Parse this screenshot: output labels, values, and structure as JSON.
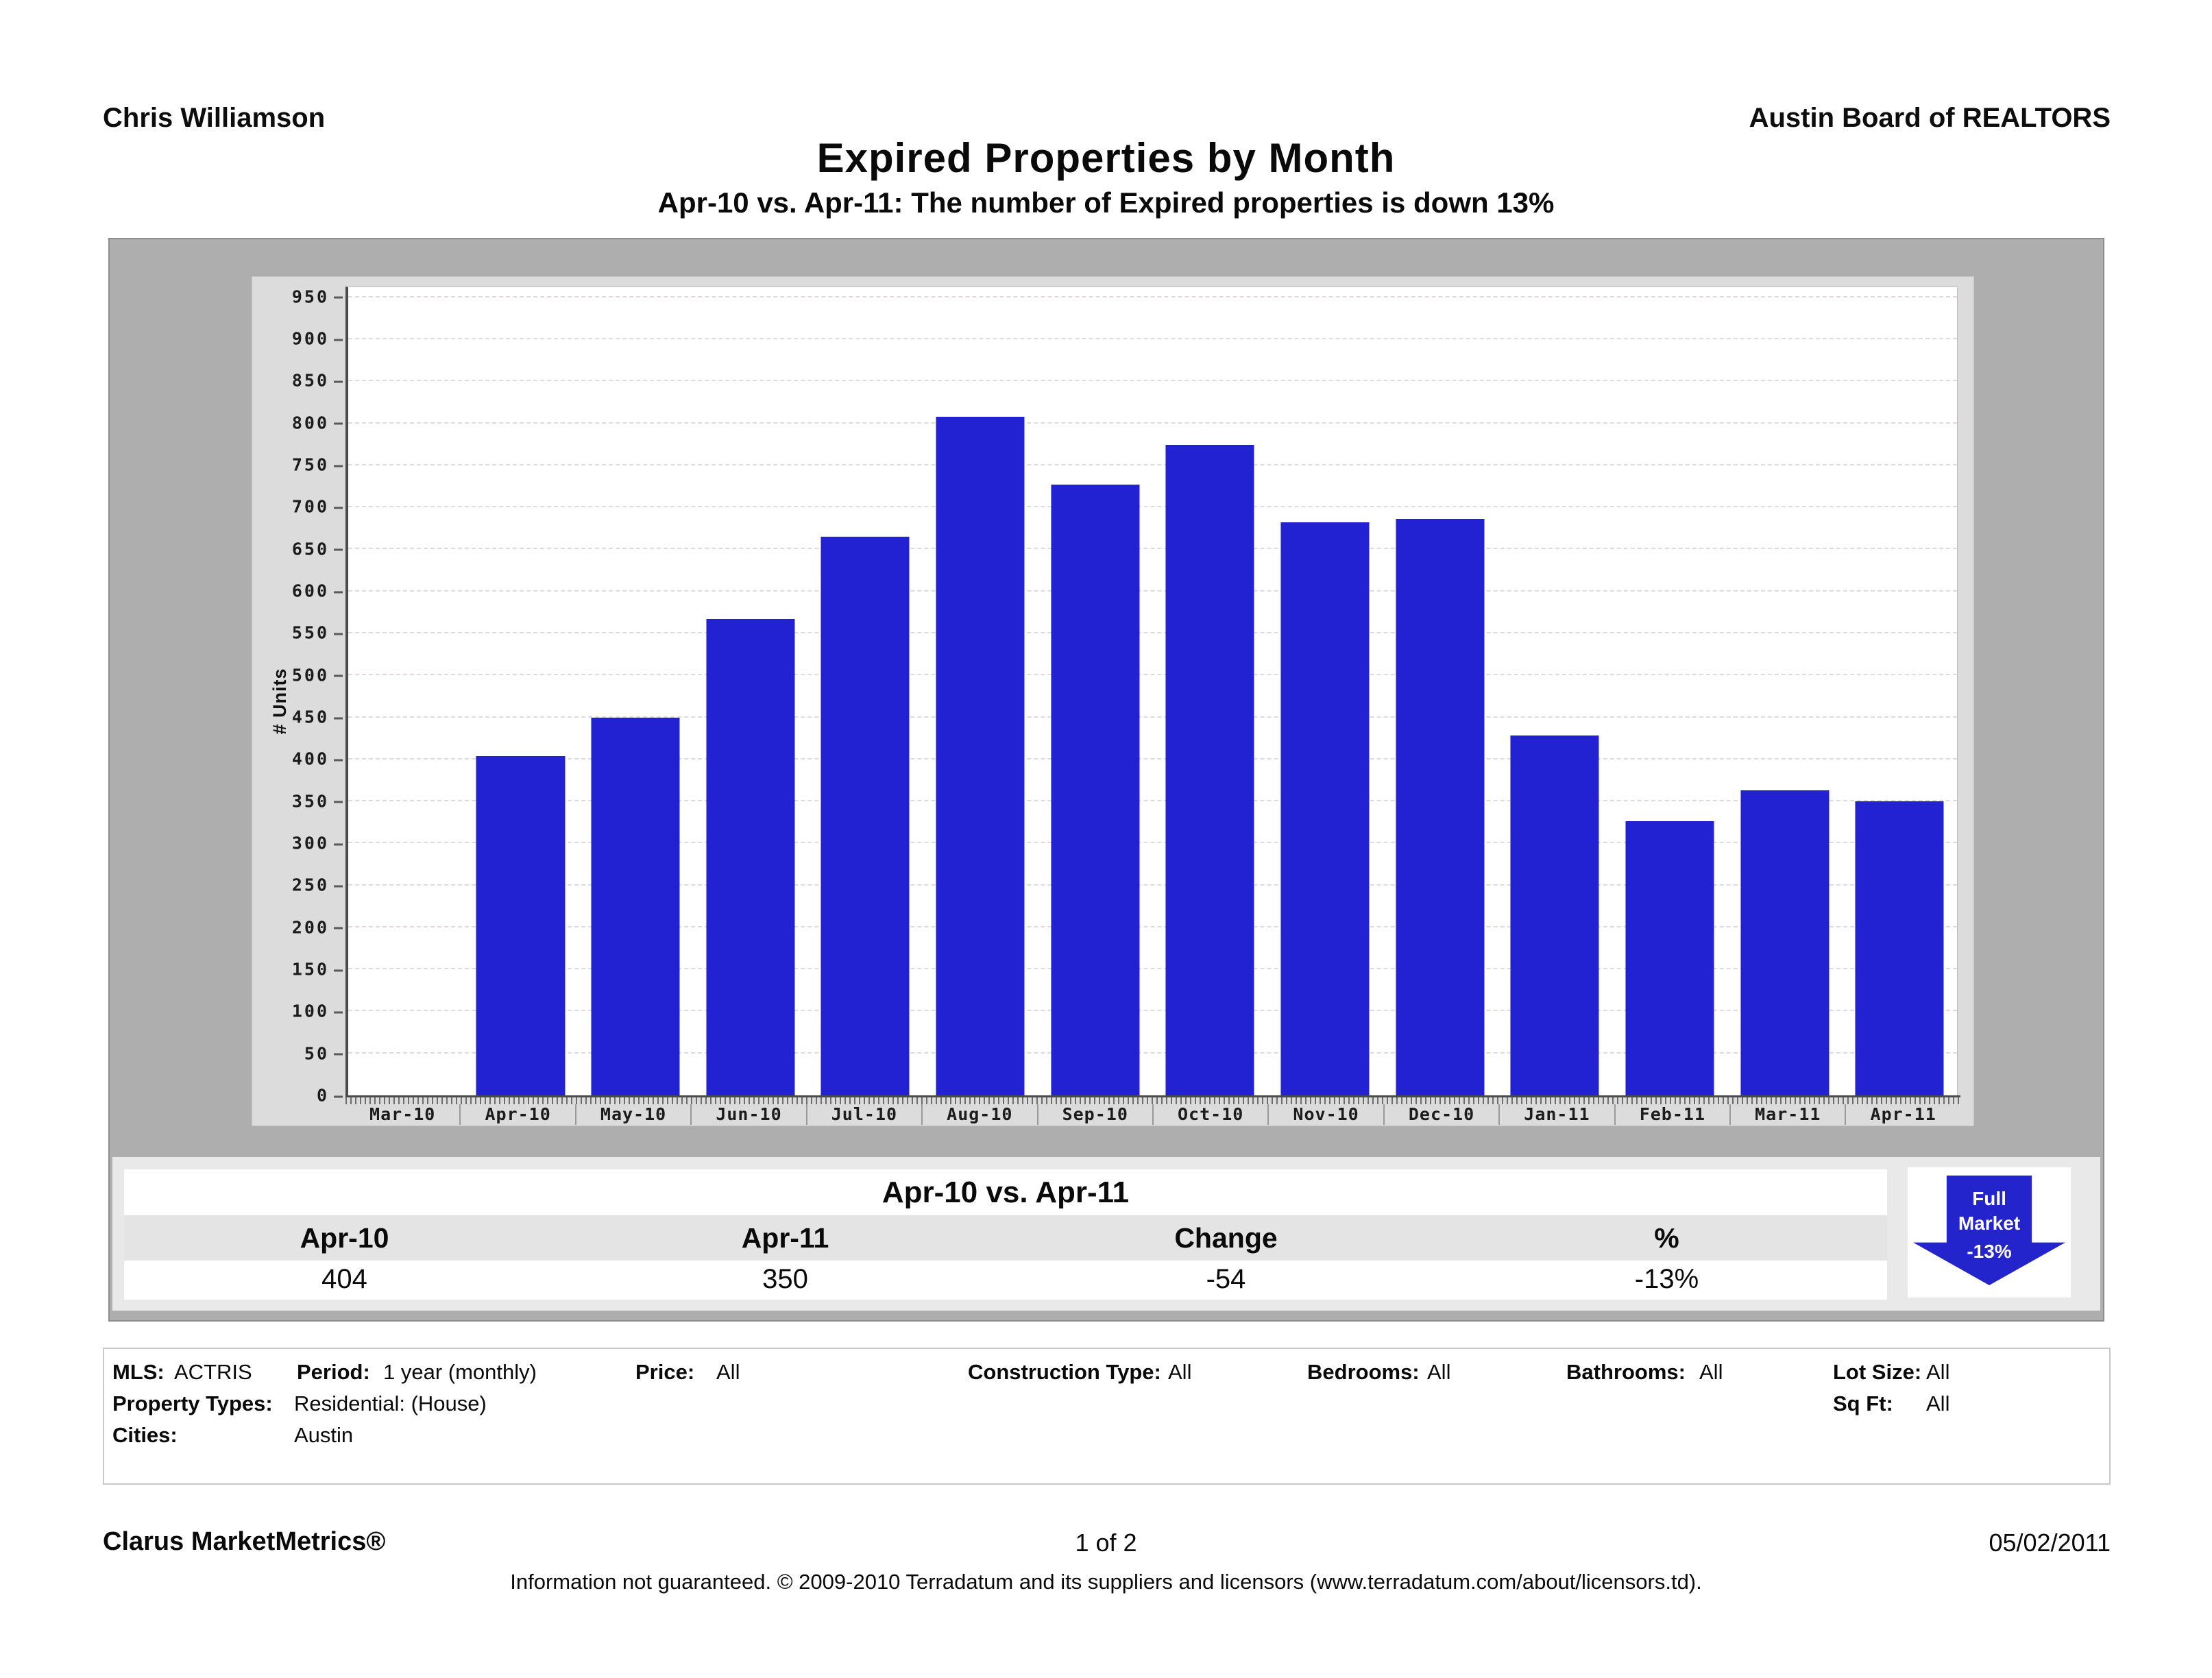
{
  "header": {
    "left": "Chris Williamson",
    "right": "Austin Board of REALTORS"
  },
  "title": "Expired Properties by Month",
  "subtitle": "Apr-10 vs. Apr-11: The number of Expired properties is down 13%",
  "chart_data": {
    "type": "bar",
    "title": "Expired Properties by Month",
    "xlabel": "",
    "ylabel": "# Units",
    "categories": [
      "Mar-10",
      "Apr-10",
      "May-10",
      "Jun-10",
      "Jul-10",
      "Aug-10",
      "Sep-10",
      "Oct-10",
      "Nov-10",
      "Dec-10",
      "Jan-11",
      "Feb-11",
      "Mar-11",
      "Apr-11"
    ],
    "values": [
      0,
      404,
      450,
      567,
      665,
      808,
      727,
      774,
      682,
      686,
      428,
      326,
      363,
      350
    ],
    "yticks": [
      0,
      50,
      100,
      150,
      200,
      250,
      300,
      350,
      400,
      450,
      500,
      550,
      600,
      650,
      700,
      750,
      800,
      850,
      900,
      950
    ],
    "ylim": [
      0,
      962
    ],
    "grid": true,
    "legend": "none",
    "bar_color": "#2222d2"
  },
  "summary_table": {
    "title": "Apr-10 vs. Apr-11",
    "columns": [
      "Apr-10",
      "Apr-11",
      "Change",
      "%"
    ],
    "values": [
      "404",
      "350",
      "-54",
      "-13%"
    ]
  },
  "badge": {
    "line1": "Full",
    "line2": "Market",
    "line3": "-13%",
    "color": "#2424cd"
  },
  "criteria": {
    "rows": [
      {
        "items": [
          {
            "label": "MLS:",
            "value": "ACTRIS"
          },
          {
            "label": "Period:",
            "value": "1 year (monthly)"
          },
          {
            "label": "Price:",
            "value": "All"
          },
          {
            "label": "Construction Type:",
            "value": "All"
          },
          {
            "label": "Bedrooms:",
            "value": "All"
          },
          {
            "label": "Bathrooms:",
            "value": "All"
          },
          {
            "label": "Lot Size:",
            "value": "All"
          }
        ]
      },
      {
        "items": [
          {
            "label": "Property Types:",
            "value": "Residential: (House)"
          },
          {
            "label": "Sq Ft:",
            "value": "All"
          }
        ]
      },
      {
        "items": [
          {
            "label": "Cities:",
            "value": "Austin"
          }
        ]
      }
    ]
  },
  "footer": {
    "left": "Clarus MarketMetrics®",
    "center": "1 of 2",
    "right": "05/02/2011",
    "disclaimer": "Information not guaranteed.  © 2009-2010 Terradatum and its suppliers and licensors (www.terradatum.com/about/licensors.td)."
  },
  "colors": {
    "container_gray": "#aeaeae",
    "chart_panel_gray": "#dcdcdc",
    "summary_band_gray": "#e9e9e9",
    "table_header_gray": "#e4e4e4",
    "gridline": "#e3d9d9",
    "bar_blue": "#2222d2",
    "badge_blue": "#2424cd"
  }
}
